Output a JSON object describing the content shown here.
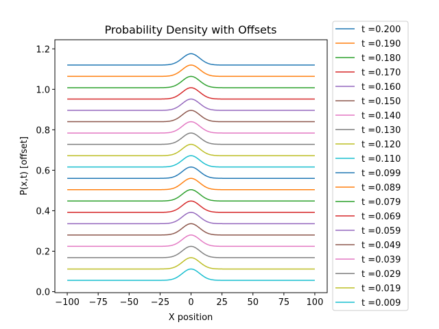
{
  "chart_data": {
    "type": "line",
    "title": "Probability Density with Offsets",
    "xlabel": "X position",
    "ylabel": "P(x,t) [offset]",
    "xlim": [
      -110,
      110
    ],
    "ylim": [
      -0.005,
      1.245
    ],
    "xticks": [
      -100,
      -75,
      -50,
      -25,
      0,
      25,
      50,
      75,
      100
    ],
    "xtick_labels": [
      "−100",
      "−75",
      "−50",
      "−25",
      "0",
      "25",
      "50",
      "75",
      "100"
    ],
    "yticks": [
      0.0,
      0.2,
      0.4,
      0.6,
      0.8,
      1.0,
      1.2
    ],
    "ytick_labels": [
      "0.0",
      "0.2",
      "0.4",
      "0.6",
      "0.8",
      "1.0",
      "1.2"
    ],
    "grid": false,
    "legend_position": "outside-right",
    "peak_center_x": 0,
    "peak_height": 0.056,
    "peak_width_sigma": 7,
    "x_range": [
      -100,
      100
    ],
    "series": [
      {
        "name": "t =0.200",
        "baseline": 1.12,
        "color": "#1f77b4"
      },
      {
        "name": "t =0.190",
        "baseline": 1.064,
        "color": "#ff7f0e"
      },
      {
        "name": "t =0.180",
        "baseline": 1.008,
        "color": "#2ca02c"
      },
      {
        "name": "t =0.170",
        "baseline": 0.952,
        "color": "#d62728"
      },
      {
        "name": "t =0.160",
        "baseline": 0.896,
        "color": "#9467bd"
      },
      {
        "name": "t =0.150",
        "baseline": 0.84,
        "color": "#8c564b"
      },
      {
        "name": "t =0.140",
        "baseline": 0.784,
        "color": "#e377c2"
      },
      {
        "name": "t =0.130",
        "baseline": 0.728,
        "color": "#7f7f7f"
      },
      {
        "name": "t =0.120",
        "baseline": 0.672,
        "color": "#bcbd22"
      },
      {
        "name": "t =0.110",
        "baseline": 0.616,
        "color": "#17becf"
      },
      {
        "name": "t =0.099",
        "baseline": 0.56,
        "color": "#1f77b4"
      },
      {
        "name": "t =0.089",
        "baseline": 0.504,
        "color": "#ff7f0e"
      },
      {
        "name": "t =0.079",
        "baseline": 0.448,
        "color": "#2ca02c"
      },
      {
        "name": "t =0.069",
        "baseline": 0.392,
        "color": "#d62728"
      },
      {
        "name": "t =0.059",
        "baseline": 0.336,
        "color": "#9467bd"
      },
      {
        "name": "t =0.049",
        "baseline": 0.28,
        "color": "#8c564b"
      },
      {
        "name": "t =0.039",
        "baseline": 0.224,
        "color": "#e377c2"
      },
      {
        "name": "t =0.029",
        "baseline": 0.168,
        "color": "#7f7f7f"
      },
      {
        "name": "t =0.019",
        "baseline": 0.112,
        "color": "#bcbd22"
      },
      {
        "name": "t =0.009",
        "baseline": 0.056,
        "color": "#17becf"
      }
    ]
  }
}
